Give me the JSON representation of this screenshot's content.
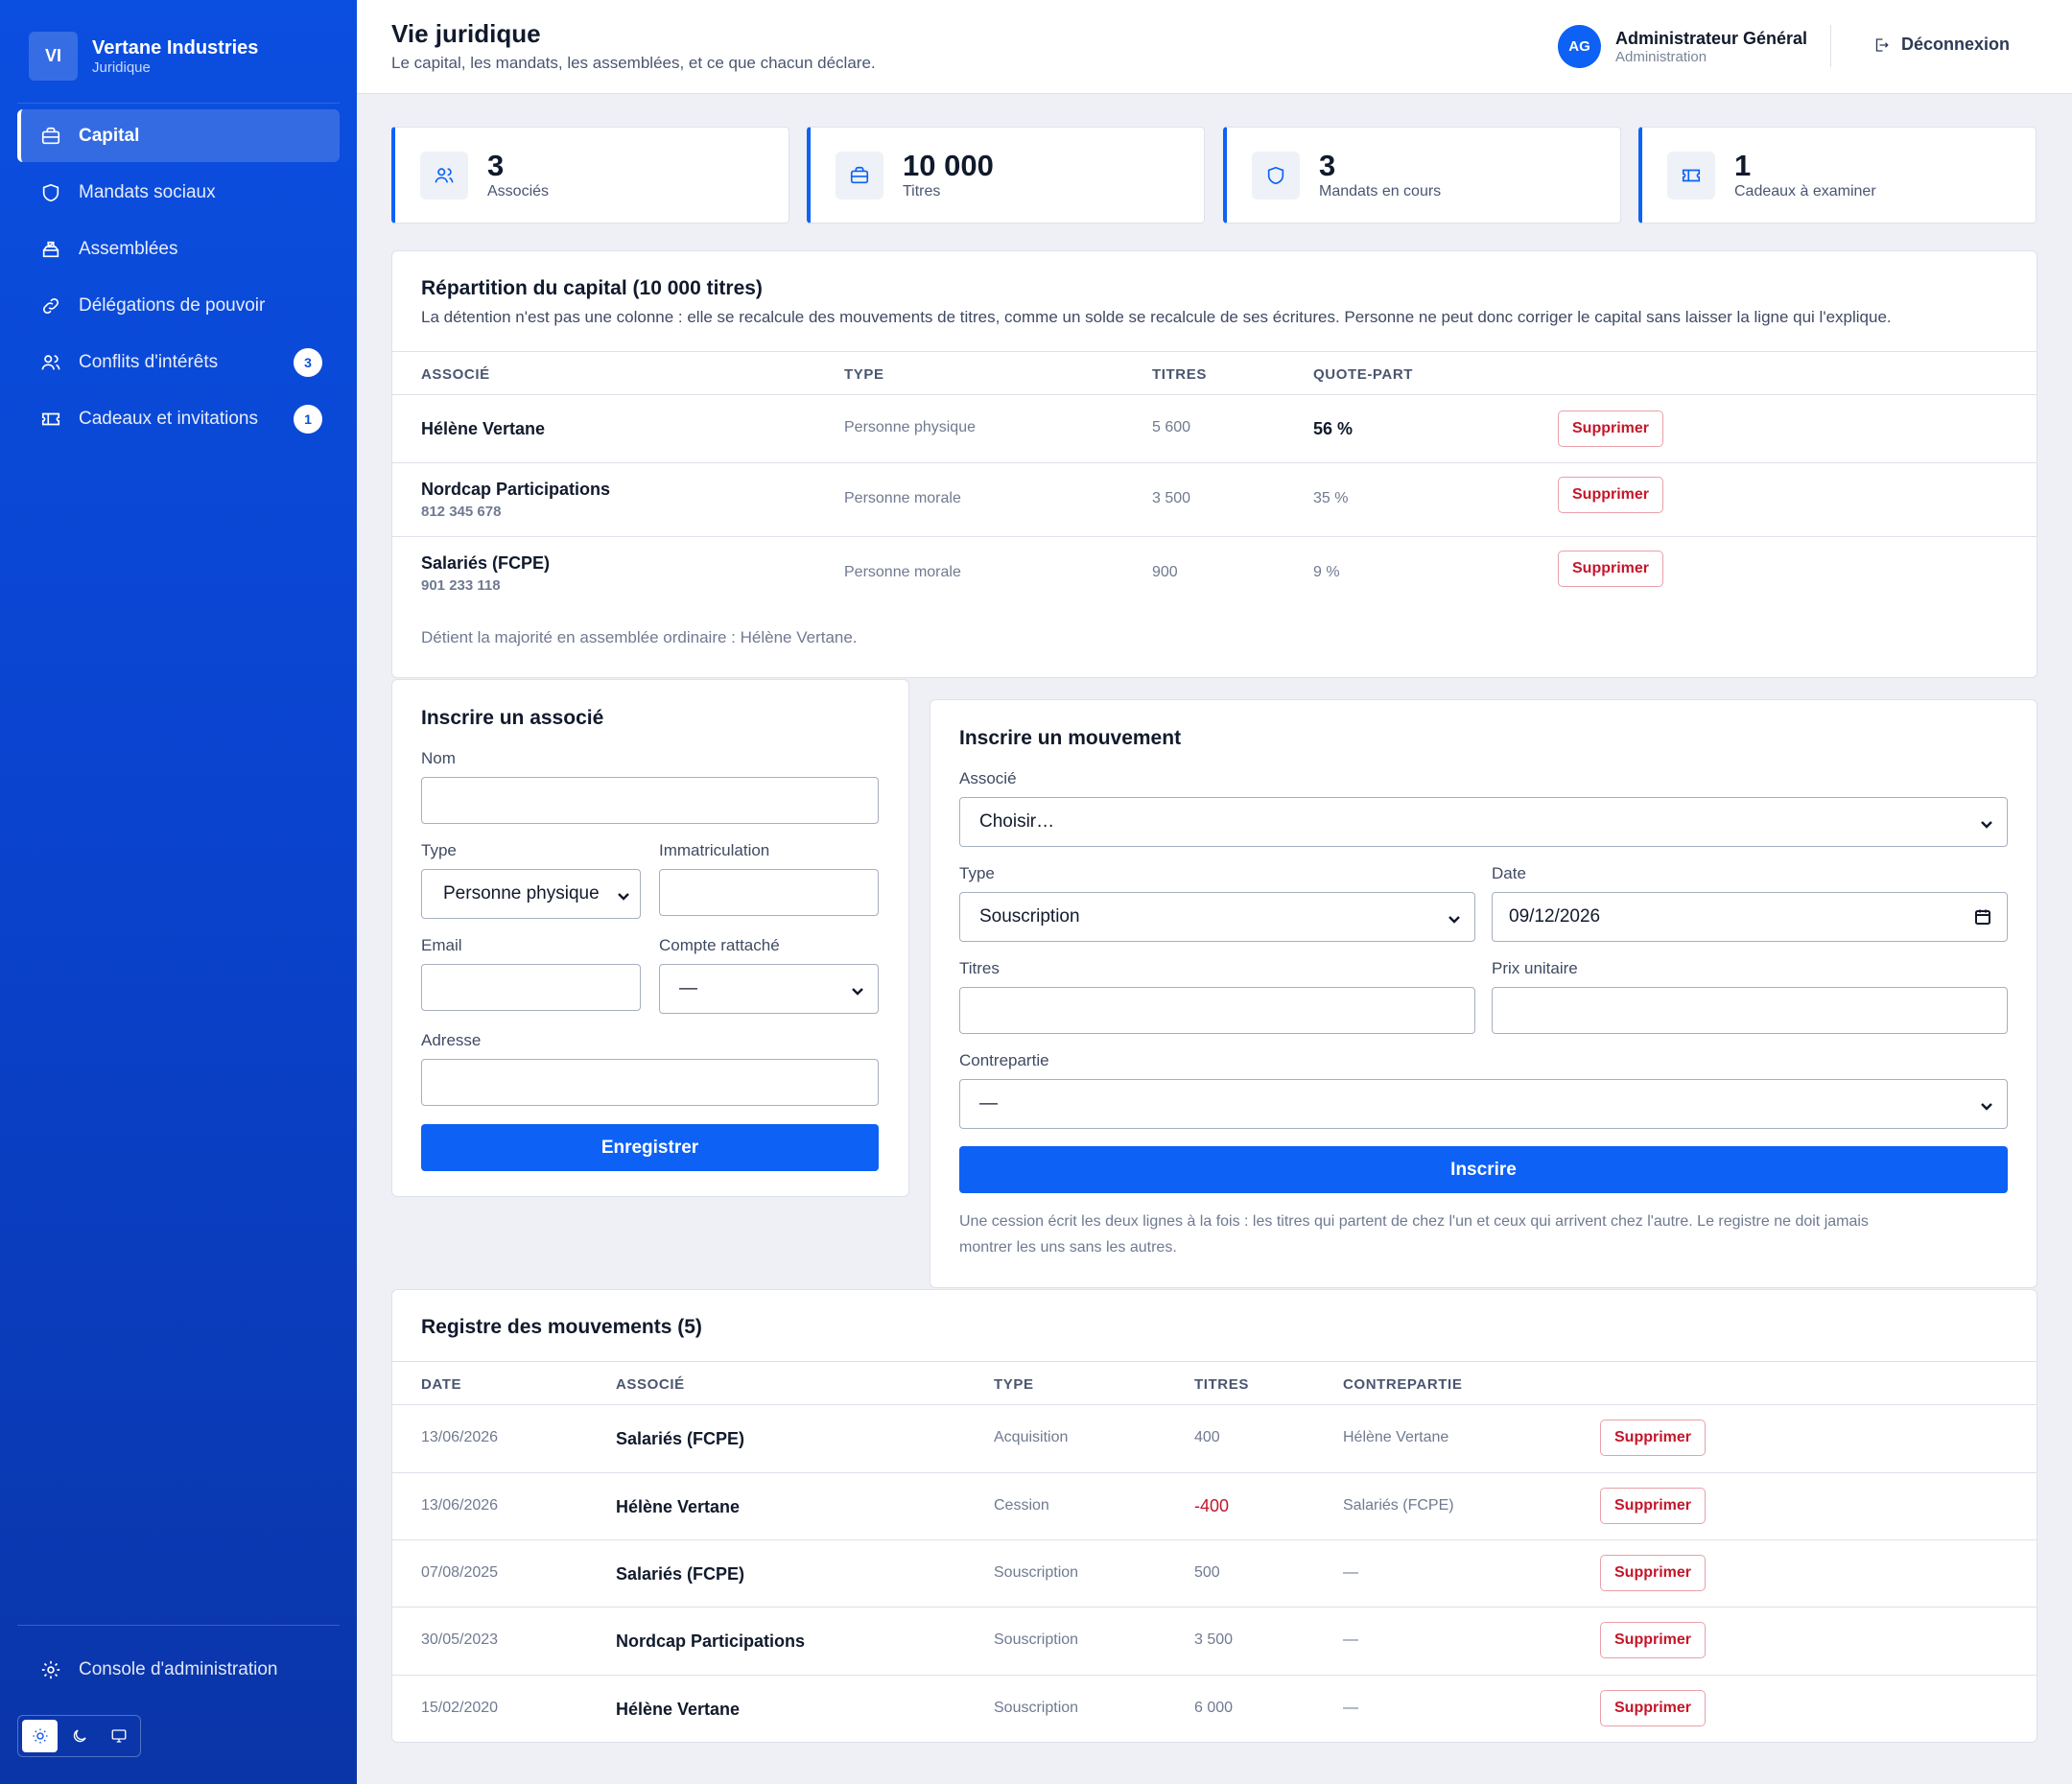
{
  "brand": {
    "initials": "VI",
    "name": "Vertane Industries",
    "subtitle": "Juridique"
  },
  "sidebar": {
    "items": [
      {
        "label": "Capital",
        "icon": "briefcase-icon",
        "active": true
      },
      {
        "label": "Mandats sociaux",
        "icon": "shield-icon"
      },
      {
        "label": "Assemblées",
        "icon": "ballot-box-icon"
      },
      {
        "label": "Délégations de pouvoir",
        "icon": "link-icon"
      },
      {
        "label": "Conflits d'intérêts",
        "icon": "users-icon",
        "badge": "3"
      },
      {
        "label": "Cadeaux et invitations",
        "icon": "ticket-icon",
        "badge": "1"
      }
    ],
    "console_label": "Console d'administration",
    "theme_modes": [
      "light",
      "dark",
      "system"
    ]
  },
  "header": {
    "title": "Vie juridique",
    "subtitle": "Le capital, les mandats, les assemblées, et ce que chacun déclare.",
    "user_initials": "AG",
    "user_name": "Administrateur Général",
    "user_role": "Administration",
    "logout_label": "Déconnexion"
  },
  "stats": [
    {
      "value": "3",
      "label": "Associés",
      "icon": "users-icon"
    },
    {
      "value": "10 000",
      "label": "Titres",
      "icon": "briefcase-icon"
    },
    {
      "value": "3",
      "label": "Mandats en cours",
      "icon": "shield-icon"
    },
    {
      "value": "1",
      "label": "Cadeaux à examiner",
      "icon": "ticket-icon"
    }
  ],
  "capital": {
    "title": "Répartition du capital (10 000 titres)",
    "description": "La détention n'est pas une colonne : elle se recalcule des mouvements de titres, comme un solde se recalcule de ses écritures. Personne ne peut donc corriger le capital sans laisser la ligne qui l'explique.",
    "columns": [
      "Associé",
      "Type",
      "Titres",
      "Quote-part"
    ],
    "rows": [
      {
        "name": "Hélène Vertane",
        "id": "",
        "type": "Personne physique",
        "titres": "5 600",
        "quote": "56 %",
        "delete": "Supprimer"
      },
      {
        "name": "Nordcap Participations",
        "id": "812 345 678",
        "type": "Personne morale",
        "titres": "3 500",
        "quote": "35 %",
        "delete": "Supprimer"
      },
      {
        "name": "Salariés (FCPE)",
        "id": "901 233 118",
        "type": "Personne morale",
        "titres": "900",
        "quote": "9 %",
        "delete": "Supprimer"
      }
    ],
    "majority_note": "Détient la majorité en assemblée ordinaire : Hélène Vertane."
  },
  "form_associe": {
    "title": "Inscrire un associé",
    "nom_label": "Nom",
    "nom_value": "",
    "type_label": "Type",
    "type_value": "Personne physique",
    "immat_label": "Immatriculation",
    "immat_value": "",
    "email_label": "Email",
    "email_value": "",
    "compte_label": "Compte rattaché",
    "compte_value": "—",
    "adresse_label": "Adresse",
    "adresse_value": "",
    "submit": "Enregistrer"
  },
  "form_mouvement": {
    "title": "Inscrire un mouvement",
    "associe_label": "Associé",
    "associe_value": "Choisir…",
    "type_label": "Type",
    "type_value": "Souscription",
    "date_label": "Date",
    "date_value": "09/12/2026",
    "titres_label": "Titres",
    "titres_value": "",
    "prix_label": "Prix unitaire",
    "prix_value": "",
    "contrepartie_label": "Contrepartie",
    "contrepartie_value": "—",
    "submit": "Inscrire",
    "note_line1": "Une cession écrit les deux lignes à la fois : les titres qui partent de chez l'un et ceux qui arrivent chez l'autre. Le registre ne doit jamais",
    "note_line2": "montrer les uns sans les autres."
  },
  "registre": {
    "title": "Registre des mouvements (5)",
    "columns": [
      "Date",
      "Associé",
      "Type",
      "Titres",
      "Contrepartie"
    ],
    "rows": [
      {
        "date": "13/06/2026",
        "associe": "Salariés (FCPE)",
        "type": "Acquisition",
        "titres": "400",
        "contrepartie": "Hélène Vertane",
        "delete": "Supprimer"
      },
      {
        "date": "13/06/2026",
        "associe": "Hélène Vertane",
        "type": "Cession",
        "titres": "-400",
        "contrepartie": "Salariés (FCPE)",
        "delete": "Supprimer"
      },
      {
        "date": "07/08/2025",
        "associe": "Salariés (FCPE)",
        "type": "Souscription",
        "titres": "500",
        "contrepartie": "—",
        "delete": "Supprimer"
      },
      {
        "date": "30/05/2023",
        "associe": "Nordcap Participations",
        "type": "Souscription",
        "titres": "3 500",
        "contrepartie": "—",
        "delete": "Supprimer"
      },
      {
        "date": "15/02/2020",
        "associe": "Hélène Vertane",
        "type": "Souscription",
        "titres": "6 000",
        "contrepartie": "—",
        "delete": "Supprimer"
      }
    ]
  },
  "colors": {
    "primary": "#0d62f5",
    "sidebar": "#0b4fe0",
    "danger": "#c4162a"
  }
}
